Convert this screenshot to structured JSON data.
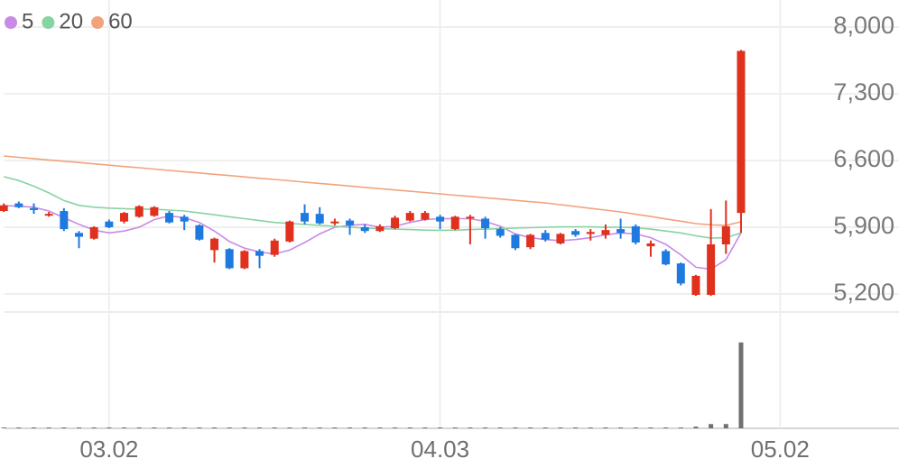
{
  "chart_data": {
    "type": "candlestick",
    "xticks": [
      {
        "value": 7,
        "label": "03.02"
      },
      {
        "value": 29,
        "label": "04.03"
      },
      {
        "value": 51.6,
        "label": "05.02"
      }
    ],
    "xlim": [
      -0.25,
      59.5
    ],
    "ylim": [
      5020,
      8284
    ],
    "yticks": [
      {
        "value": 8000,
        "label": "8,000"
      },
      {
        "value": 7300,
        "label": "7,300"
      },
      {
        "value": 6600,
        "label": "6,600"
      },
      {
        "value": 5900,
        "label": "5,900"
      },
      {
        "value": 5200,
        "label": "5,200"
      }
    ],
    "grid": true,
    "up_color": "#e0301e",
    "down_color": "#1f7ae0",
    "volume_color": "#707070",
    "open": [
      6070,
      6150,
      6100,
      6030,
      6070,
      5840,
      5780,
      5960,
      5960,
      6010,
      6020,
      6050,
      6010,
      5920,
      5660,
      5670,
      5470,
      5650,
      5610,
      5750,
      6050,
      6040,
      5940,
      5970,
      5900,
      5860,
      5890,
      5970,
      5980,
      6010,
      5880,
      6000,
      5990,
      5880,
      5820,
      5690,
      5840,
      5730,
      5860,
      5830,
      5820,
      5880,
      5910,
      5700,
      5650,
      5520,
      5190,
      5190,
      5720,
      6050
    ],
    "high": [
      6150,
      6170,
      6150,
      6060,
      6100,
      5860,
      5910,
      5980,
      6060,
      6130,
      6120,
      6070,
      6030,
      5930,
      5790,
      5680,
      5660,
      5670,
      5780,
      5970,
      6140,
      6110,
      5990,
      5990,
      5930,
      5930,
      6020,
      6070,
      6070,
      6030,
      6020,
      6030,
      6010,
      5900,
      5830,
      5830,
      5870,
      5840,
      5880,
      5880,
      5930,
      5990,
      5930,
      5760,
      5670,
      5530,
      5400,
      6090,
      6180,
      7760
    ],
    "low": [
      6060,
      6100,
      6040,
      6010,
      5860,
      5680,
      5770,
      5890,
      5940,
      6000,
      6010,
      5940,
      5870,
      5760,
      5530,
      5460,
      5460,
      5470,
      5590,
      5740,
      5930,
      5930,
      5920,
      5820,
      5840,
      5850,
      5880,
      5960,
      5970,
      5880,
      5870,
      5720,
      5780,
      5790,
      5660,
      5670,
      5750,
      5720,
      5800,
      5760,
      5780,
      5780,
      5720,
      5590,
      5500,
      5290,
      5180,
      5180,
      5620,
      5840
    ],
    "close": [
      6130,
      6110,
      6080,
      6040,
      5880,
      5800,
      5900,
      5900,
      6050,
      6120,
      6110,
      5950,
      5960,
      5770,
      5780,
      5470,
      5650,
      5600,
      5760,
      5960,
      5960,
      5940,
      5960,
      5920,
      5860,
      5910,
      6000,
      6050,
      6050,
      5960,
      6010,
      6010,
      5890,
      5810,
      5680,
      5820,
      5770,
      5830,
      5820,
      5850,
      5870,
      5840,
      5740,
      5730,
      5510,
      5310,
      5390,
      5720,
      5910,
      7750
    ],
    "volume": [
      1,
      1,
      1,
      1,
      1,
      1,
      1,
      1,
      1,
      1,
      1,
      1,
      1,
      1,
      1,
      1,
      1,
      1,
      1,
      1,
      1,
      1,
      1,
      1,
      1,
      1,
      1,
      1,
      1,
      1,
      1,
      1,
      1,
      1,
      1,
      1,
      1,
      1,
      1,
      1,
      1,
      1,
      1,
      1,
      1,
      1,
      2,
      5,
      5,
      100
    ],
    "vlim": [
      0,
      105
    ],
    "series": [
      {
        "name": "5",
        "color": "#c98ae6",
        "values": [
          6127,
          6120,
          6110,
          6070,
          6000,
          5930,
          5870,
          5840,
          5860,
          5900,
          5980,
          6020,
          6000,
          5950,
          5860,
          5750,
          5680,
          5640,
          5620,
          5660,
          5740,
          5830,
          5900,
          5920,
          5930,
          5900,
          5910,
          5950,
          5980,
          5990,
          5990,
          5990,
          5960,
          5910,
          5830,
          5790,
          5770,
          5760,
          5770,
          5790,
          5820,
          5840,
          5830,
          5790,
          5720,
          5610,
          5480,
          5460,
          5560,
          5840
        ]
      },
      {
        "name": "20",
        "color": "#86d4a2",
        "values": [
          6430,
          6390,
          6330,
          6260,
          6180,
          6130,
          6110,
          6100,
          6095,
          6090,
          6090,
          6080,
          6070,
          6050,
          6030,
          6010,
          5990,
          5970,
          5950,
          5940,
          5930,
          5920,
          5910,
          5900,
          5890,
          5885,
          5880,
          5875,
          5870,
          5868,
          5870,
          5875,
          5880,
          5885,
          5890,
          5895,
          5900,
          5905,
          5905,
          5905,
          5900,
          5900,
          5895,
          5880,
          5860,
          5840,
          5810,
          5785,
          5790,
          5840
        ]
      },
      {
        "name": "60",
        "color": "#f2a27c",
        "values": [
          6647,
          6633,
          6620,
          6606,
          6592,
          6579,
          6565,
          6551,
          6537,
          6524,
          6510,
          6496,
          6483,
          6469,
          6455,
          6442,
          6428,
          6414,
          6401,
          6387,
          6373,
          6360,
          6346,
          6332,
          6318,
          6305,
          6291,
          6277,
          6264,
          6250,
          6236,
          6223,
          6209,
          6196,
          6182,
          6168,
          6155,
          6136,
          6117,
          6098,
          6080,
          6061,
          6036,
          6012,
          5987,
          5963,
          5938,
          5925,
          5920,
          5957
        ]
      }
    ]
  }
}
